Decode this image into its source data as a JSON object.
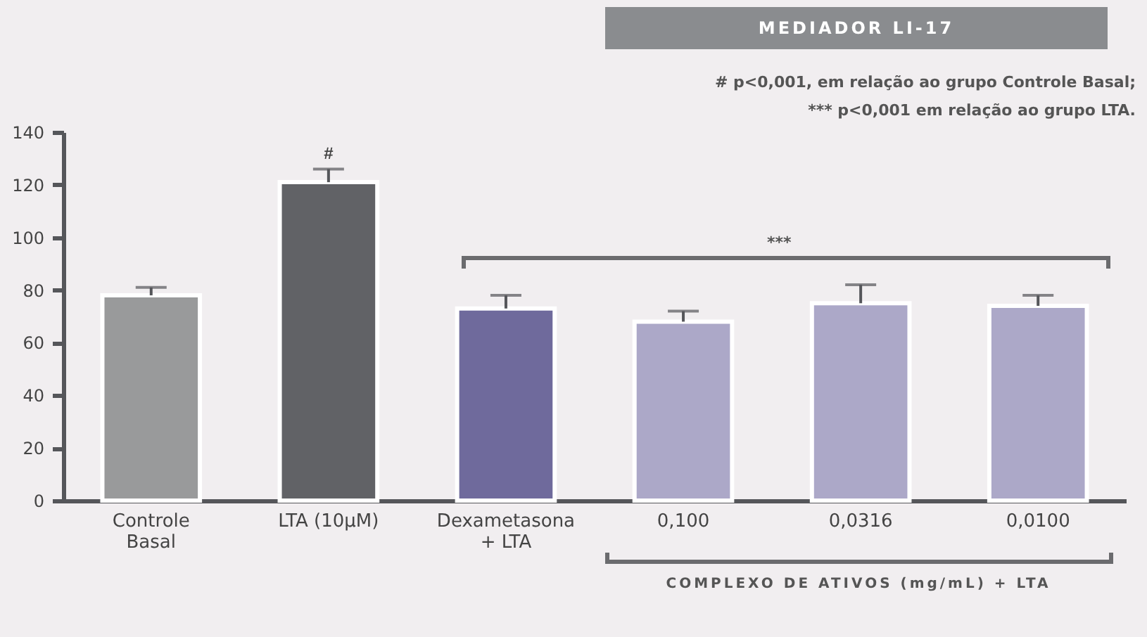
{
  "chart_data": {
    "type": "bar",
    "title": "MEDIADOR LI-17",
    "categories": [
      "Controle\nBasal",
      "LTA (10µM)",
      "Dexametasona\n+ LTA",
      "0,100",
      "0,0316",
      "0,0100"
    ],
    "values": [
      78,
      121,
      73,
      68,
      75,
      74
    ],
    "errors": [
      3,
      5,
      5,
      4,
      7,
      4
    ],
    "colors": [
      "#999a9b",
      "#616266",
      "#6f6a9c",
      "#aca8c8",
      "#aca8c8",
      "#aca8c8"
    ],
    "ylim": [
      0,
      140
    ],
    "yticks": [
      0,
      20,
      40,
      60,
      80,
      100,
      120,
      140
    ],
    "grid": false,
    "annotations": [
      "# p<0,001, em relação ao grupo Controle Basal;",
      "*** p<0,001 em relação ao grupo LTA.",
      {
        "text": "#",
        "x": "LTA (10µM)",
        "y": 126
      },
      "***",
      "COMPLEXO DE ATIVOS (mg/mL) + LTA"
    ]
  }
}
